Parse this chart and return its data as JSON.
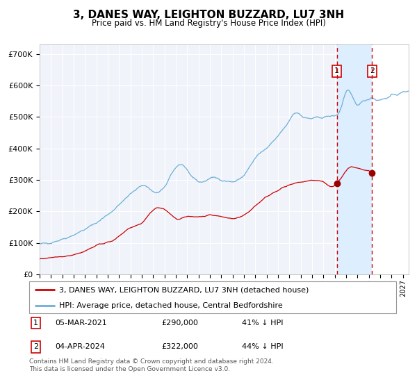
{
  "title": "3, DANES WAY, LEIGHTON BUZZARD, LU7 3NH",
  "subtitle": "Price paid vs. HM Land Registry's House Price Index (HPI)",
  "legend_line1": "3, DANES WAY, LEIGHTON BUZZARD, LU7 3NH (detached house)",
  "legend_line2": "HPI: Average price, detached house, Central Bedfordshire",
  "annotation1_date": "05-MAR-2021",
  "annotation1_price": "£290,000",
  "annotation1_hpi": "41% ↓ HPI",
  "annotation2_date": "04-APR-2024",
  "annotation2_price": "£322,000",
  "annotation2_hpi": "44% ↓ HPI",
  "footer": "Contains HM Land Registry data © Crown copyright and database right 2024.\nThis data is licensed under the Open Government Licence v3.0.",
  "hpi_color": "#6baed6",
  "price_color": "#cc0000",
  "marker_color": "#990000",
  "dashed_line_color": "#cc0000",
  "shaded_region_color": "#ddeeff",
  "annotation_box_color": "#cc0000",
  "chart_bg": "#f0f4fa",
  "grid_color": "#ffffff",
  "ylim": [
    0,
    730000
  ],
  "xlim_start": 1995.0,
  "xlim_end": 2027.5,
  "sale1_x": 2021.17,
  "sale1_y": 290000,
  "sale2_x": 2024.28,
  "sale2_y": 322000
}
